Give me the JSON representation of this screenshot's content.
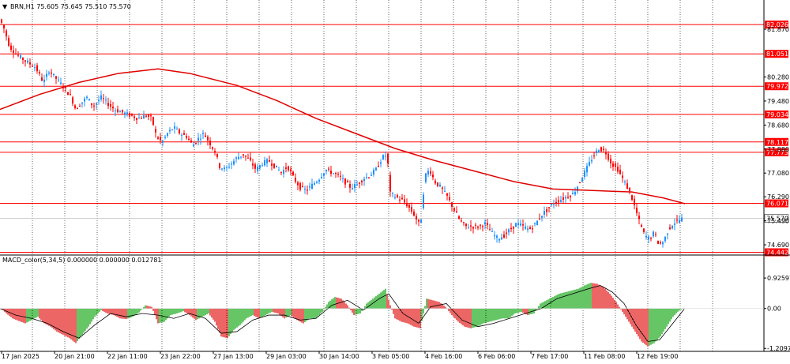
{
  "header": {
    "menu_glyph": "▼",
    "symbol_line": "BRN,H1  75.605 75.645 75.510 75.570"
  },
  "macd": {
    "label": "MACD_color(5,34,5) 0.000000 0.000000 0.012781"
  },
  "colors": {
    "bull": "#1e90ff",
    "bear": "#ff0000",
    "ma": "#e00000",
    "level": "#ff0000",
    "hist_up": "#00a000",
    "hist_down": "#e00000",
    "signal": "#000000",
    "grid": "#000000"
  },
  "chart_data": [
    {
      "type": "candlestick",
      "symbol": "BRN",
      "timeframe": "H1",
      "ohlc_last": {
        "open": 75.605,
        "high": 75.645,
        "low": 75.51,
        "close": 75.57
      },
      "price_range": [
        74.35,
        82.45
      ],
      "current_price_label": "75.570",
      "current_price": 75.57,
      "price_axis_ticks": [
        "81.870",
        "80.280",
        "79.480",
        "78.680",
        "77.880",
        "77.080",
        "76.290",
        "75.490",
        "74.690"
      ],
      "price_axis_values": [
        81.87,
        80.28,
        79.48,
        78.68,
        77.88,
        77.08,
        76.29,
        75.49,
        74.69
      ],
      "horizontal_levels": [
        "82.026",
        "81.051",
        "79.972",
        "79.034",
        "78.117",
        "77.773",
        "76.071",
        "74.442"
      ],
      "time_axis_labels": [
        "17 Jan 2025",
        "20 Jan 21:00",
        "22 Jan 11:00",
        "23 Jan 22:00",
        "27 Jan 13:00",
        "29 Jan 03:00",
        "30 Jan 14:00",
        "3 Feb 05:00",
        "4 Feb 16:00",
        "6 Feb 06:00",
        "7 Feb 17:00",
        "11 Feb 08:00",
        "12 Feb 19:00"
      ],
      "price_path": [
        [
          0,
          82.2
        ],
        [
          5,
          81.9
        ],
        [
          12,
          81.3
        ],
        [
          22,
          81.0
        ],
        [
          33,
          80.8
        ],
        [
          45,
          80.6
        ],
        [
          55,
          80.1
        ],
        [
          62,
          80.5
        ],
        [
          72,
          80.2
        ],
        [
          82,
          79.9
        ],
        [
          90,
          79.6
        ],
        [
          96,
          79.2
        ],
        [
          102,
          79.4
        ],
        [
          110,
          79.6
        ],
        [
          118,
          79.3
        ],
        [
          128,
          79.6
        ],
        [
          136,
          79.4
        ],
        [
          145,
          79.2
        ],
        [
          155,
          79.1
        ],
        [
          165,
          79.0
        ],
        [
          175,
          78.9
        ],
        [
          185,
          79.0
        ],
        [
          192,
          78.9
        ],
        [
          198,
          78.3
        ],
        [
          205,
          78.1
        ],
        [
          212,
          78.4
        ],
        [
          220,
          78.6
        ],
        [
          228,
          78.4
        ],
        [
          236,
          78.3
        ],
        [
          244,
          78.0
        ],
        [
          250,
          78.2
        ],
        [
          258,
          78.4
        ],
        [
          265,
          78.1
        ],
        [
          272,
          77.8
        ],
        [
          278,
          77.3
        ],
        [
          285,
          77.2
        ],
        [
          293,
          77.4
        ],
        [
          300,
          77.6
        ],
        [
          308,
          77.7
        ],
        [
          316,
          77.5
        ],
        [
          324,
          77.2
        ],
        [
          332,
          77.4
        ],
        [
          340,
          77.5
        ],
        [
          348,
          77.3
        ],
        [
          356,
          77.1
        ],
        [
          364,
          77.3
        ],
        [
          372,
          76.9
        ],
        [
          380,
          76.6
        ],
        [
          388,
          76.5
        ],
        [
          396,
          76.7
        ],
        [
          404,
          76.9
        ],
        [
          412,
          77.2
        ],
        [
          420,
          77.1
        ],
        [
          428,
          77.0
        ],
        [
          436,
          76.8
        ],
        [
          444,
          76.6
        ],
        [
          452,
          76.7
        ],
        [
          460,
          76.9
        ],
        [
          468,
          77.0
        ],
        [
          476,
          77.2
        ],
        [
          484,
          77.6
        ],
        [
          490,
          77.7
        ],
        [
          494,
          76.4
        ],
        [
          500,
          76.3
        ],
        [
          508,
          76.2
        ],
        [
          516,
          76.0
        ],
        [
          524,
          75.7
        ],
        [
          532,
          75.3
        ],
        [
          538,
          77.0
        ],
        [
          544,
          77.2
        ],
        [
          550,
          76.8
        ],
        [
          558,
          76.6
        ],
        [
          566,
          76.3
        ],
        [
          574,
          75.9
        ],
        [
          582,
          75.5
        ],
        [
          590,
          75.3
        ],
        [
          598,
          75.3
        ],
        [
          606,
          75.3
        ],
        [
          614,
          75.4
        ],
        [
          622,
          75.1
        ],
        [
          630,
          74.9
        ],
        [
          638,
          75.0
        ],
        [
          646,
          75.2
        ],
        [
          654,
          75.4
        ],
        [
          662,
          75.3
        ],
        [
          670,
          75.2
        ],
        [
          678,
          75.4
        ],
        [
          686,
          75.7
        ],
        [
          694,
          75.9
        ],
        [
          702,
          76.1
        ],
        [
          710,
          76.2
        ],
        [
          718,
          76.3
        ],
        [
          726,
          76.4
        ],
        [
          734,
          76.8
        ],
        [
          742,
          77.2
        ],
        [
          750,
          77.6
        ],
        [
          758,
          77.9
        ],
        [
          766,
          77.8
        ],
        [
          774,
          77.4
        ],
        [
          782,
          77.2
        ],
        [
          790,
          76.8
        ],
        [
          798,
          76.4
        ],
        [
          804,
          75.9
        ],
        [
          810,
          75.4
        ],
        [
          816,
          75.0
        ],
        [
          822,
          74.9
        ],
        [
          828,
          75.1
        ],
        [
          834,
          74.7
        ],
        [
          840,
          74.8
        ],
        [
          846,
          75.2
        ],
        [
          852,
          75.4
        ],
        [
          858,
          75.5
        ],
        [
          864,
          75.57
        ]
      ],
      "moving_average": [
        [
          0,
          79.2
        ],
        [
          50,
          79.7
        ],
        [
          100,
          80.1
        ],
        [
          150,
          80.4
        ],
        [
          200,
          80.55
        ],
        [
          240,
          80.4
        ],
        [
          300,
          80.0
        ],
        [
          350,
          79.5
        ],
        [
          400,
          78.9
        ],
        [
          450,
          78.4
        ],
        [
          500,
          77.9
        ],
        [
          550,
          77.5
        ],
        [
          600,
          77.15
        ],
        [
          650,
          76.8
        ],
        [
          700,
          76.55
        ],
        [
          750,
          76.5
        ],
        [
          800,
          76.45
        ],
        [
          840,
          76.25
        ],
        [
          867,
          76.06
        ]
      ]
    },
    {
      "type": "histogram",
      "name": "MACD_color(5,34,5)",
      "value_range": [
        -1.3,
        1.0
      ],
      "axis_ticks": [
        "0.925971",
        "0.00",
        "-1.209703"
      ],
      "axis_values": [
        0.925971,
        0.0,
        -1.209703
      ],
      "histogram": [
        [
          0,
          0.05
        ],
        [
          8,
          -0.15
        ],
        [
          16,
          -0.3
        ],
        [
          24,
          -0.38
        ],
        [
          32,
          -0.45
        ],
        [
          40,
          -0.35
        ],
        [
          48,
          -0.25
        ],
        [
          56,
          -0.45
        ],
        [
          64,
          -0.55
        ],
        [
          72,
          -0.7
        ],
        [
          80,
          -0.8
        ],
        [
          88,
          -0.9
        ],
        [
          96,
          -1.05
        ],
        [
          104,
          -0.8
        ],
        [
          112,
          -0.55
        ],
        [
          120,
          -0.25
        ],
        [
          128,
          -0.05
        ],
        [
          136,
          -0.15
        ],
        [
          144,
          -0.2
        ],
        [
          152,
          -0.3
        ],
        [
          160,
          -0.32
        ],
        [
          168,
          -0.25
        ],
        [
          176,
          -0.12
        ],
        [
          184,
          0.1
        ],
        [
          192,
          0.05
        ],
        [
          200,
          -0.45
        ],
        [
          208,
          -0.4
        ],
        [
          216,
          -0.2
        ],
        [
          224,
          -0.15
        ],
        [
          232,
          -0.08
        ],
        [
          240,
          -0.2
        ],
        [
          248,
          -0.35
        ],
        [
          256,
          -0.25
        ],
        [
          264,
          -0.15
        ],
        [
          272,
          -0.4
        ],
        [
          280,
          -0.85
        ],
        [
          288,
          -0.9
        ],
        [
          296,
          -0.65
        ],
        [
          304,
          -0.5
        ],
        [
          312,
          -0.3
        ],
        [
          320,
          -0.2
        ],
        [
          328,
          -0.3
        ],
        [
          336,
          -0.2
        ],
        [
          344,
          -0.1
        ],
        [
          352,
          -0.15
        ],
        [
          360,
          -0.3
        ],
        [
          368,
          -0.2
        ],
        [
          376,
          -0.35
        ],
        [
          384,
          -0.45
        ],
        [
          392,
          -0.3
        ],
        [
          400,
          -0.3
        ],
        [
          408,
          -0.1
        ],
        [
          416,
          0.2
        ],
        [
          424,
          0.35
        ],
        [
          432,
          0.3
        ],
        [
          440,
          0.1
        ],
        [
          448,
          -0.2
        ],
        [
          456,
          -0.15
        ],
        [
          464,
          0.15
        ],
        [
          472,
          0.3
        ],
        [
          480,
          0.45
        ],
        [
          488,
          0.6
        ],
        [
          494,
          0.1
        ],
        [
          500,
          -0.3
        ],
        [
          508,
          -0.4
        ],
        [
          516,
          -0.45
        ],
        [
          524,
          -0.55
        ],
        [
          532,
          -0.6
        ],
        [
          540,
          0.3
        ],
        [
          548,
          0.25
        ],
        [
          556,
          0.2
        ],
        [
          564,
          0.05
        ],
        [
          572,
          -0.2
        ],
        [
          580,
          -0.4
        ],
        [
          588,
          -0.55
        ],
        [
          596,
          -0.6
        ],
        [
          604,
          -0.55
        ],
        [
          612,
          -0.45
        ],
        [
          620,
          -0.4
        ],
        [
          628,
          -0.35
        ],
        [
          636,
          -0.3
        ],
        [
          644,
          -0.3
        ],
        [
          652,
          -0.15
        ],
        [
          660,
          -0.1
        ],
        [
          668,
          -0.2
        ],
        [
          676,
          -0.15
        ],
        [
          684,
          0.15
        ],
        [
          692,
          0.25
        ],
        [
          700,
          0.35
        ],
        [
          708,
          0.45
        ],
        [
          716,
          0.5
        ],
        [
          724,
          0.55
        ],
        [
          732,
          0.6
        ],
        [
          740,
          0.7
        ],
        [
          748,
          0.78
        ],
        [
          756,
          0.75
        ],
        [
          764,
          0.65
        ],
        [
          772,
          0.45
        ],
        [
          780,
          0.2
        ],
        [
          788,
          -0.1
        ],
        [
          796,
          -0.4
        ],
        [
          804,
          -0.7
        ],
        [
          812,
          -1.0
        ],
        [
          820,
          -1.15
        ],
        [
          828,
          -1.05
        ],
        [
          836,
          -0.85
        ],
        [
          844,
          -0.55
        ],
        [
          852,
          -0.25
        ],
        [
          860,
          -0.05
        ],
        [
          866,
          0.01
        ]
      ],
      "signal": [
        [
          0,
          0.0
        ],
        [
          20,
          -0.2
        ],
        [
          40,
          -0.3
        ],
        [
          60,
          -0.45
        ],
        [
          80,
          -0.7
        ],
        [
          100,
          -0.9
        ],
        [
          120,
          -0.5
        ],
        [
          140,
          -0.15
        ],
        [
          160,
          -0.25
        ],
        [
          180,
          -0.15
        ],
        [
          200,
          -0.2
        ],
        [
          220,
          -0.3
        ],
        [
          240,
          -0.15
        ],
        [
          260,
          -0.3
        ],
        [
          280,
          -0.75
        ],
        [
          300,
          -0.7
        ],
        [
          320,
          -0.35
        ],
        [
          340,
          -0.2
        ],
        [
          360,
          -0.2
        ],
        [
          380,
          -0.35
        ],
        [
          400,
          -0.3
        ],
        [
          420,
          0.1
        ],
        [
          440,
          0.25
        ],
        [
          460,
          -0.05
        ],
        [
          480,
          0.3
        ],
        [
          492,
          0.45
        ],
        [
          510,
          -0.15
        ],
        [
          530,
          -0.45
        ],
        [
          545,
          0.05
        ],
        [
          565,
          0.15
        ],
        [
          585,
          -0.35
        ],
        [
          605,
          -0.55
        ],
        [
          625,
          -0.45
        ],
        [
          645,
          -0.3
        ],
        [
          665,
          -0.15
        ],
        [
          685,
          0.0
        ],
        [
          705,
          0.3
        ],
        [
          725,
          0.45
        ],
        [
          745,
          0.6
        ],
        [
          760,
          0.7
        ],
        [
          775,
          0.5
        ],
        [
          790,
          0.15
        ],
        [
          805,
          -0.5
        ],
        [
          820,
          -1.0
        ],
        [
          835,
          -0.95
        ],
        [
          850,
          -0.5
        ],
        [
          866,
          -0.02
        ]
      ]
    }
  ]
}
